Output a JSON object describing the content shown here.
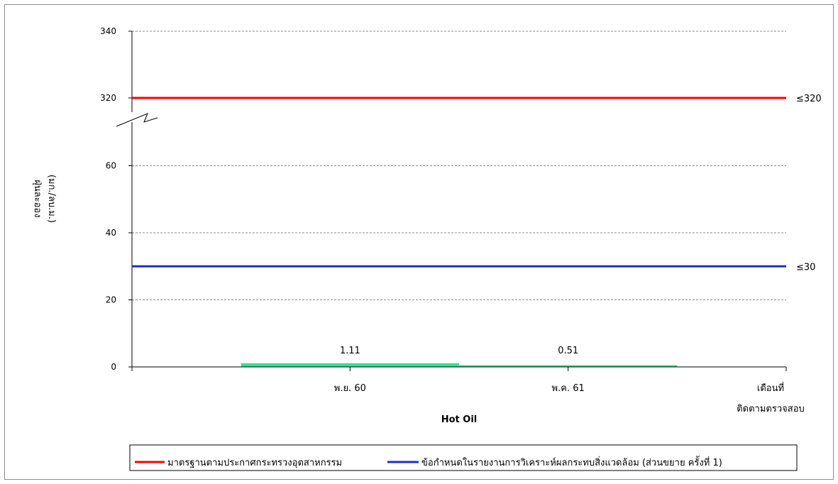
{
  "chart_data": {
    "type": "bar",
    "title": "",
    "xlabel": "Hot Oil",
    "ylabel_line1": "ฝุ่นละออง",
    "ylabel_line2": "(มก./ลบ.ม.)",
    "x_axis_end_label_line1": "เดือนที่",
    "x_axis_end_label_line2": "ติดตามตรวจสอบ",
    "categories": [
      "พ.ย. 60",
      "พ.ค. 61"
    ],
    "values": [
      1.11,
      0.51
    ],
    "value_labels": [
      "1.11",
      "0.51"
    ],
    "bar_colors": [
      "#33e38f",
      "#33e38f"
    ],
    "y_axis_broken": true,
    "y_lower_range": [
      0,
      60
    ],
    "y_upper_range": [
      320,
      340
    ],
    "y_ticks": [
      "0",
      "20",
      "40",
      "60",
      "320",
      "340"
    ],
    "grid": true,
    "reference_lines": [
      {
        "name": "มาตรฐานตามประกาศกระทรวงอุตสาหกรรม",
        "value": 320,
        "label": "≤320",
        "color": "#ff0000"
      },
      {
        "name": "ข้อกำหนดในรายงานการวิเคราะห์ผลกระทบสิ่งแวดล้อม (ส่วนขยาย ครั้งที่ 1)",
        "value": 30,
        "label": "≤30",
        "color": "#1f2fbf"
      }
    ],
    "legend_position": "bottom"
  }
}
